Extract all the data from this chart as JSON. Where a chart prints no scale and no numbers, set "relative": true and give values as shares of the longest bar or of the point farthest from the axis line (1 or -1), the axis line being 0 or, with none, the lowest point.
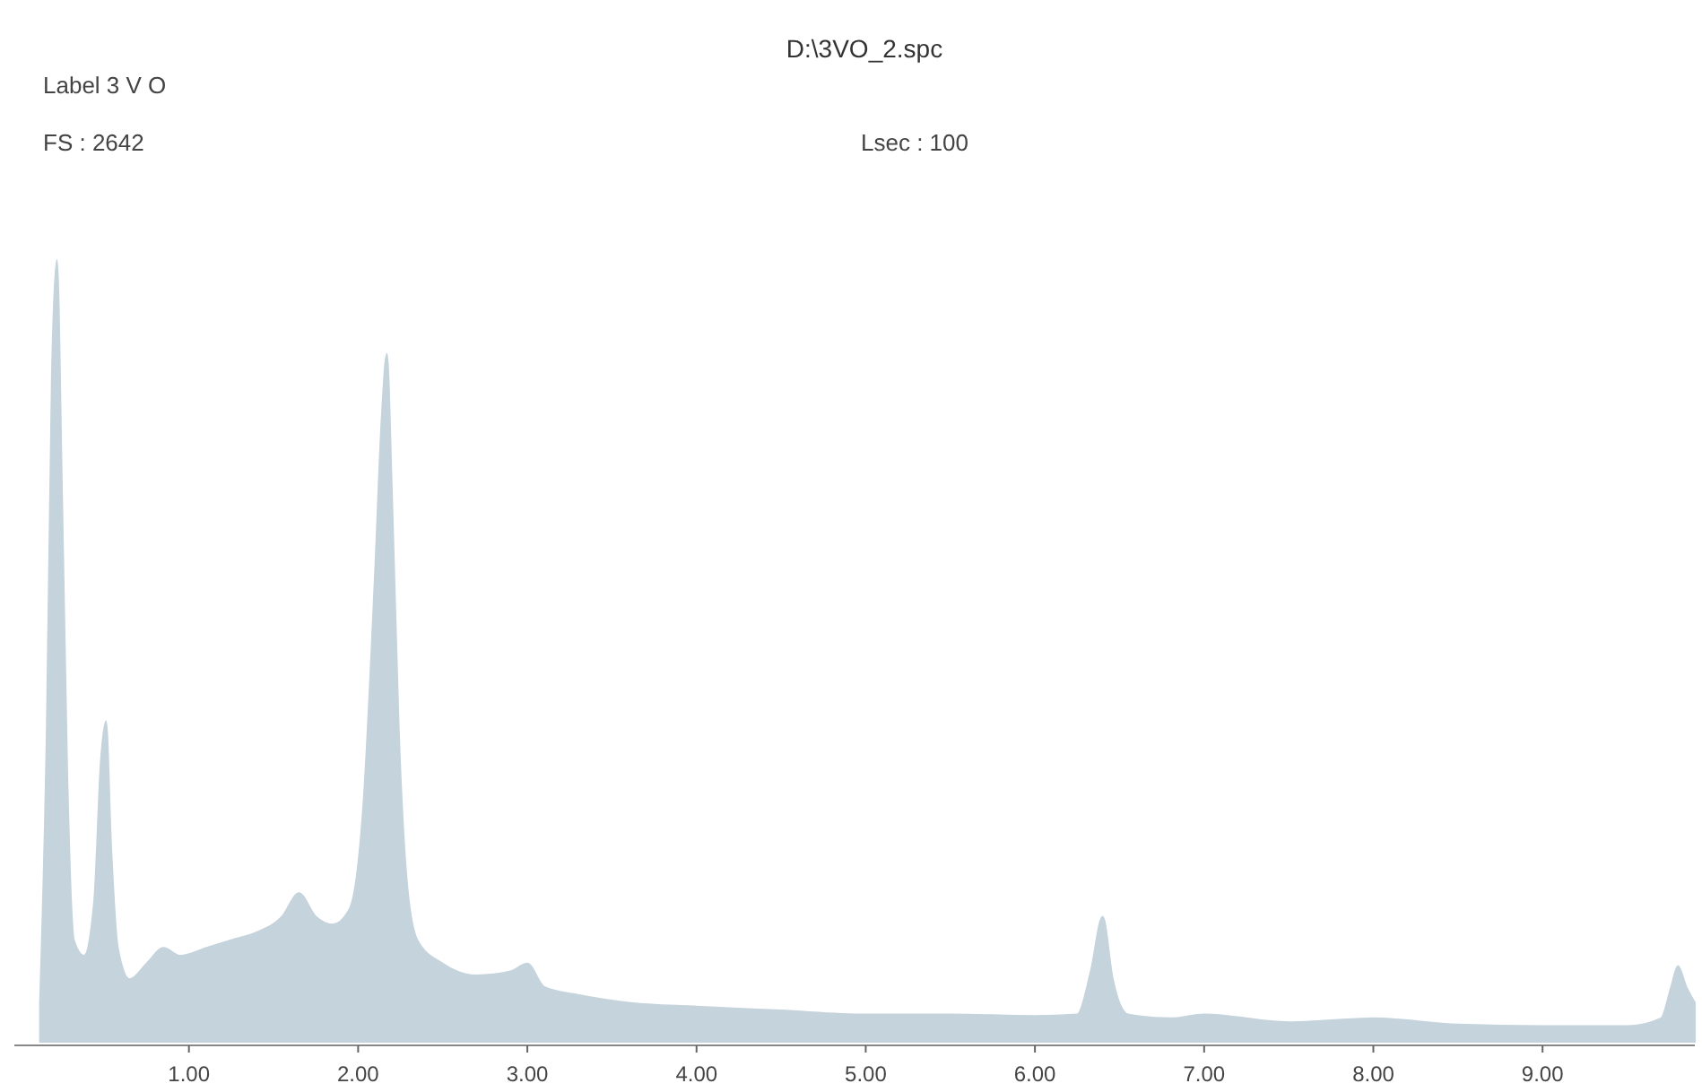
{
  "chart_data": {
    "type": "area",
    "title": "D:\\3VO_2.spc",
    "annotations": [
      "Label 3 V O",
      "FS : 2642",
      "Lsec : 100"
    ],
    "relative": true,
    "xlim": [
      0,
      9.9
    ],
    "xticks": [
      {
        "value": 1,
        "label": "1.00"
      },
      {
        "value": 2,
        "label": "2.00"
      },
      {
        "value": 3,
        "label": "3.00"
      },
      {
        "value": 4,
        "label": "4.00"
      },
      {
        "value": 5,
        "label": "5.00"
      },
      {
        "value": 6,
        "label": "6.00"
      },
      {
        "value": 7,
        "label": "7.00"
      },
      {
        "value": 8,
        "label": "8.00"
      },
      {
        "value": 9,
        "label": "9.00"
      }
    ],
    "series": [
      {
        "color": "#c5d3dc",
        "x": [
          0.12,
          0.16,
          0.19,
          0.22,
          0.25,
          0.28,
          0.32,
          0.38,
          0.44,
          0.48,
          0.51,
          0.54,
          0.58,
          0.65,
          0.75,
          0.85,
          0.95,
          1.1,
          1.25,
          1.4,
          1.55,
          1.65,
          1.75,
          1.85,
          1.95,
          2.03,
          2.1,
          2.14,
          2.17,
          2.2,
          2.24,
          2.29,
          2.35,
          2.5,
          2.7,
          2.9,
          3.0,
          3.1,
          3.3,
          3.6,
          4.0,
          4.5,
          5.0,
          5.5,
          6.0,
          6.25,
          6.33,
          6.4,
          6.46,
          6.55,
          6.8,
          7.0,
          7.5,
          8.0,
          8.5,
          9.0,
          9.5,
          9.7,
          9.76,
          9.8,
          9.85,
          9.9
        ],
        "values": [
          0.05,
          0.4,
          0.85,
          1,
          0.7,
          0.35,
          0.13,
          0.11,
          0.18,
          0.36,
          0.41,
          0.25,
          0.12,
          0.08,
          0.1,
          0.12,
          0.11,
          0.12,
          0.13,
          0.14,
          0.16,
          0.19,
          0.16,
          0.15,
          0.17,
          0.3,
          0.6,
          0.8,
          0.88,
          0.7,
          0.4,
          0.2,
          0.13,
          0.1,
          0.085,
          0.09,
          0.1,
          0.07,
          0.06,
          0.05,
          0.045,
          0.04,
          0.035,
          0.035,
          0.033,
          0.035,
          0.09,
          0.16,
          0.08,
          0.035,
          0.03,
          0.035,
          0.025,
          0.03,
          0.022,
          0.02,
          0.02,
          0.03,
          0.07,
          0.097,
          0.07,
          0.05
        ]
      }
    ]
  }
}
